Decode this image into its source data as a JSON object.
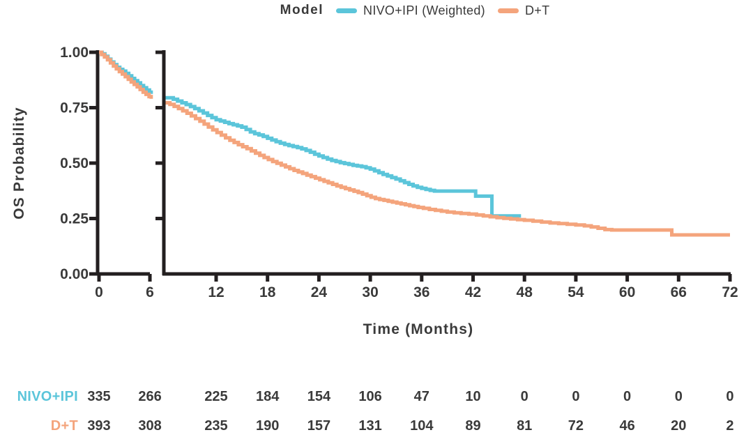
{
  "figure": {
    "background": "#ffffff"
  },
  "colors": {
    "axis": "#231f20",
    "text": "#3a3a3a"
  },
  "legend": {
    "title": "Model",
    "items": [
      {
        "label": "NIVO+IPI (Weighted)",
        "color": "#5bc5da"
      },
      {
        "label": "D+T",
        "color": "#f4a47c"
      }
    ]
  },
  "chart_data": {
    "type": "line",
    "style": "kaplan-meier-step",
    "title": "",
    "xlabel": "Time (Months)",
    "ylabel": "OS Probability",
    "x_axis": {
      "tick_values": [
        0,
        6,
        12,
        18,
        24,
        30,
        36,
        42,
        48,
        54,
        60,
        66,
        72
      ],
      "axis_break_after": 6,
      "panel1_range": [
        0,
        6.3
      ],
      "panel2_range": [
        6.1,
        72
      ]
    },
    "y_axis": {
      "range": [
        0,
        1
      ],
      "ticks": [
        {
          "value": 1.0,
          "label": "1.00"
        },
        {
          "value": 0.75,
          "label": "0.75"
        },
        {
          "value": 0.5,
          "label": "0.50"
        },
        {
          "value": 0.25,
          "label": "0.25"
        },
        {
          "value": 0.0,
          "label": "0.00"
        }
      ]
    },
    "series": [
      {
        "name": "NIVO+IPI (Weighted)",
        "color": "#5bc5da",
        "panel1_steps": [
          [
            0,
            1.0
          ],
          [
            0.35,
            0.993
          ],
          [
            0.7,
            0.982
          ],
          [
            1.05,
            0.969
          ],
          [
            1.4,
            0.956
          ],
          [
            1.75,
            0.944
          ],
          [
            2.1,
            0.932
          ],
          [
            2.45,
            0.923
          ],
          [
            2.8,
            0.915
          ],
          [
            3.15,
            0.905
          ],
          [
            3.5,
            0.894
          ],
          [
            3.85,
            0.882
          ],
          [
            4.2,
            0.872
          ],
          [
            4.55,
            0.862
          ],
          [
            4.9,
            0.85
          ],
          [
            5.25,
            0.84
          ],
          [
            5.6,
            0.83
          ],
          [
            5.95,
            0.82
          ],
          [
            6.15,
            0.812
          ]
        ],
        "panel2_steps": [
          [
            6.1,
            0.795
          ],
          [
            7,
            0.788
          ],
          [
            7.5,
            0.78
          ],
          [
            8,
            0.772
          ],
          [
            8.5,
            0.764
          ],
          [
            9,
            0.755
          ],
          [
            9.5,
            0.746
          ],
          [
            10,
            0.736
          ],
          [
            10.5,
            0.726
          ],
          [
            11,
            0.715
          ],
          [
            11.5,
            0.705
          ],
          [
            12,
            0.696
          ],
          [
            12.5,
            0.69
          ],
          [
            13,
            0.684
          ],
          [
            13.5,
            0.678
          ],
          [
            14,
            0.673
          ],
          [
            14.5,
            0.668
          ],
          [
            15,
            0.662
          ],
          [
            15.5,
            0.652
          ],
          [
            16,
            0.641
          ],
          [
            16.5,
            0.633
          ],
          [
            17,
            0.627
          ],
          [
            17.5,
            0.62
          ],
          [
            18,
            0.612
          ],
          [
            18.5,
            0.604
          ],
          [
            19,
            0.597
          ],
          [
            19.5,
            0.59
          ],
          [
            20,
            0.584
          ],
          [
            20.5,
            0.579
          ],
          [
            21,
            0.575
          ],
          [
            21.5,
            0.57
          ],
          [
            22,
            0.564
          ],
          [
            22.5,
            0.557
          ],
          [
            23,
            0.549
          ],
          [
            23.5,
            0.54
          ],
          [
            24,
            0.532
          ],
          [
            24.5,
            0.525
          ],
          [
            25,
            0.518
          ],
          [
            25.5,
            0.512
          ],
          [
            26,
            0.507
          ],
          [
            26.5,
            0.502
          ],
          [
            27,
            0.498
          ],
          [
            27.5,
            0.494
          ],
          [
            28,
            0.49
          ],
          [
            28.5,
            0.487
          ],
          [
            29,
            0.484
          ],
          [
            29.5,
            0.479
          ],
          [
            30,
            0.473
          ],
          [
            30.5,
            0.465
          ],
          [
            31,
            0.457
          ],
          [
            31.5,
            0.449
          ],
          [
            32,
            0.442
          ],
          [
            32.5,
            0.435
          ],
          [
            33,
            0.428
          ],
          [
            33.5,
            0.42
          ],
          [
            34,
            0.412
          ],
          [
            34.5,
            0.404
          ],
          [
            35,
            0.397
          ],
          [
            35.5,
            0.391
          ],
          [
            36,
            0.386
          ],
          [
            36.5,
            0.381
          ],
          [
            37,
            0.377
          ],
          [
            37.5,
            0.374
          ],
          [
            42.3,
            0.351
          ],
          [
            44.2,
            0.262
          ],
          [
            47.6,
            0.262
          ]
        ]
      },
      {
        "name": "D+T",
        "color": "#f4a47c",
        "panel1_steps": [
          [
            0,
            1.0
          ],
          [
            0.3,
            0.99
          ],
          [
            0.65,
            0.979
          ],
          [
            1.0,
            0.966
          ],
          [
            1.35,
            0.952
          ],
          [
            1.7,
            0.938
          ],
          [
            2.05,
            0.925
          ],
          [
            2.4,
            0.913
          ],
          [
            2.75,
            0.902
          ],
          [
            3.1,
            0.89
          ],
          [
            3.45,
            0.878
          ],
          [
            3.8,
            0.866
          ],
          [
            4.15,
            0.855
          ],
          [
            4.5,
            0.844
          ],
          [
            4.85,
            0.832
          ],
          [
            5.2,
            0.82
          ],
          [
            5.55,
            0.81
          ],
          [
            5.9,
            0.8
          ],
          [
            6.15,
            0.79
          ]
        ],
        "panel2_steps": [
          [
            6.1,
            0.772
          ],
          [
            6.6,
            0.765
          ],
          [
            7.1,
            0.756
          ],
          [
            7.6,
            0.746
          ],
          [
            8.1,
            0.736
          ],
          [
            8.6,
            0.725
          ],
          [
            9.1,
            0.713
          ],
          [
            9.6,
            0.701
          ],
          [
            10.1,
            0.689
          ],
          [
            10.6,
            0.676
          ],
          [
            11.1,
            0.663
          ],
          [
            11.6,
            0.65
          ],
          [
            12.1,
            0.638
          ],
          [
            12.6,
            0.626
          ],
          [
            13.1,
            0.614
          ],
          [
            13.6,
            0.603
          ],
          [
            14.1,
            0.593
          ],
          [
            14.6,
            0.583
          ],
          [
            15.1,
            0.574
          ],
          [
            15.6,
            0.565
          ],
          [
            16.1,
            0.555
          ],
          [
            16.6,
            0.545
          ],
          [
            17.1,
            0.535
          ],
          [
            17.6,
            0.525
          ],
          [
            18.1,
            0.516
          ],
          [
            18.6,
            0.507
          ],
          [
            19.1,
            0.499
          ],
          [
            19.6,
            0.491
          ],
          [
            20.1,
            0.483
          ],
          [
            20.6,
            0.475
          ],
          [
            21.1,
            0.467
          ],
          [
            21.6,
            0.46
          ],
          [
            22.1,
            0.453
          ],
          [
            22.6,
            0.446
          ],
          [
            23.1,
            0.439
          ],
          [
            23.6,
            0.432
          ],
          [
            24.1,
            0.425
          ],
          [
            24.6,
            0.418
          ],
          [
            25.1,
            0.411
          ],
          [
            25.6,
            0.404
          ],
          [
            26.1,
            0.397
          ],
          [
            26.6,
            0.391
          ],
          [
            27.1,
            0.385
          ],
          [
            27.6,
            0.379
          ],
          [
            28.1,
            0.373
          ],
          [
            28.6,
            0.367
          ],
          [
            29.1,
            0.36
          ],
          [
            29.6,
            0.353
          ],
          [
            30.1,
            0.346
          ],
          [
            30.6,
            0.34
          ],
          [
            31.1,
            0.336
          ],
          [
            31.6,
            0.332
          ],
          [
            32.1,
            0.328
          ],
          [
            32.6,
            0.324
          ],
          [
            33.1,
            0.32
          ],
          [
            33.6,
            0.316
          ],
          [
            34.1,
            0.312
          ],
          [
            34.6,
            0.308
          ],
          [
            35.1,
            0.304
          ],
          [
            35.6,
            0.3
          ],
          [
            36.2,
            0.296
          ],
          [
            36.9,
            0.291
          ],
          [
            37.6,
            0.287
          ],
          [
            38.3,
            0.283
          ],
          [
            39,
            0.279
          ],
          [
            39.8,
            0.276
          ],
          [
            40.6,
            0.273
          ],
          [
            41.5,
            0.27
          ],
          [
            42.4,
            0.266
          ],
          [
            43.2,
            0.262
          ],
          [
            44,
            0.258
          ],
          [
            44.8,
            0.254
          ],
          [
            45.6,
            0.251
          ],
          [
            46.4,
            0.248
          ],
          [
            47.2,
            0.245
          ],
          [
            48,
            0.242
          ],
          [
            49,
            0.238
          ],
          [
            50,
            0.234
          ],
          [
            51,
            0.23
          ],
          [
            52,
            0.227
          ],
          [
            53,
            0.224
          ],
          [
            54,
            0.221
          ],
          [
            55,
            0.217
          ],
          [
            55.8,
            0.212
          ],
          [
            56.6,
            0.206
          ],
          [
            57.4,
            0.2
          ],
          [
            58.2,
            0.198
          ],
          [
            65.2,
            0.176
          ],
          [
            72,
            0.176
          ]
        ]
      }
    ],
    "risk_table": {
      "columns_months": [
        0,
        6,
        12,
        18,
        24,
        30,
        36,
        42,
        48,
        54,
        60,
        66,
        72
      ],
      "rows": [
        {
          "label": "NIVO+IPI",
          "color": "#5bc5da",
          "values": [
            335,
            266,
            225,
            184,
            154,
            106,
            47,
            10,
            0,
            0,
            0,
            0,
            0
          ]
        },
        {
          "label": "D+T",
          "color": "#f4a47c",
          "values": [
            393,
            308,
            235,
            190,
            157,
            131,
            104,
            89,
            81,
            72,
            46,
            20,
            2
          ]
        }
      ]
    }
  }
}
